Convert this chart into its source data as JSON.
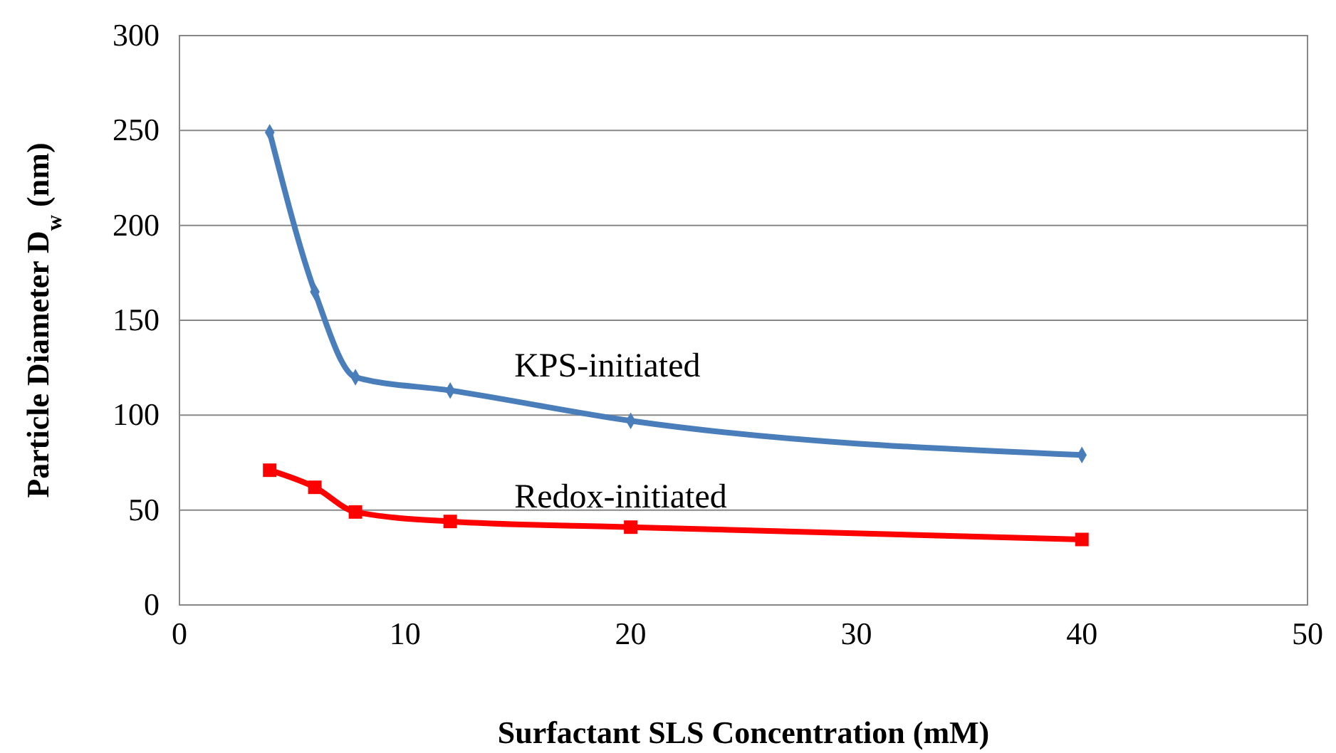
{
  "chart_data": {
    "type": "line",
    "xlabel": "Surfactant SLS Concentration (mM)",
    "ylabel": "Particle Diameter D$_{w}$ (nm)",
    "xlim": [
      0,
      50
    ],
    "xticks": [
      0,
      10,
      20,
      30,
      40,
      50
    ],
    "ylim": [
      0,
      300
    ],
    "yticks": [
      0,
      50,
      100,
      150,
      200,
      250,
      300
    ],
    "grid": "y",
    "series": [
      {
        "name": "KPS-initiated",
        "color": "#4a7ebb",
        "marker": "diamond",
        "x": [
          4,
          6,
          7.8,
          12,
          20,
          40
        ],
        "values": [
          249,
          165,
          120,
          113,
          97,
          79
        ]
      },
      {
        "name": "Redox-initiated",
        "color": "#ff0000",
        "marker": "square",
        "x": [
          4,
          6,
          7.8,
          12,
          20,
          40
        ],
        "values": [
          71,
          62,
          49,
          44,
          41,
          34.5
        ]
      }
    ]
  }
}
